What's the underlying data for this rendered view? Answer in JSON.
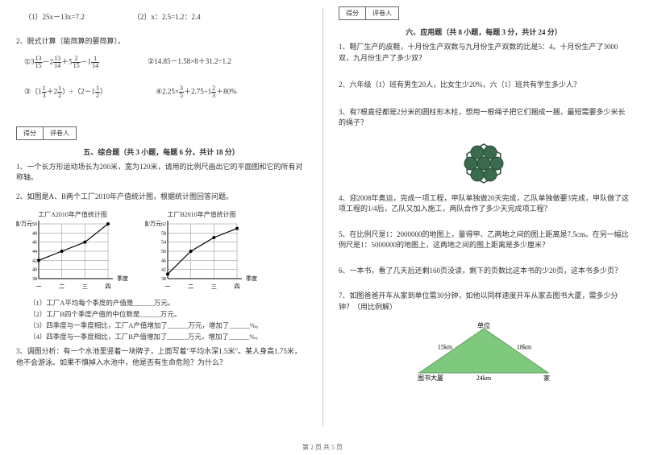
{
  "left": {
    "q1_eq1": "（1）25x－13x=7.2",
    "q1_eq2": "（2）x：2.5=1.2：2.4",
    "q2_title": "2、脱式计算（能简算的要简算）。",
    "q2_eq1_pre": "①3",
    "q2_eq1_f1n": "13",
    "q2_eq1_f1d": "15",
    "q2_eq1_m1": "－2",
    "q2_eq1_f2n": "13",
    "q2_eq1_f2d": "14",
    "q2_eq1_m2": "＋5",
    "q2_eq1_f3n": "2",
    "q2_eq1_f3d": "15",
    "q2_eq1_m3": "－1",
    "q2_eq1_f4n": "1",
    "q2_eq1_f4d": "14",
    "q2_eq2": "②14.85－1.58×8＋31.2÷1.2",
    "q2_eq3_pre": "③（1",
    "q2_eq3_f1n": "1",
    "q2_eq3_f1d": "3",
    "q2_eq3_m1": "＋2",
    "q2_eq3_f2n": "1",
    "q2_eq3_f2d": "2",
    "q2_eq3_m2": "）÷（2－1",
    "q2_eq3_f3n": "1",
    "q2_eq3_f3d": "2",
    "q2_eq3_m3": "）",
    "q2_eq4_pre": "④2.25×",
    "q2_eq4_f1n": "3",
    "q2_eq4_f1d": "5",
    "q2_eq4_m1": "＋2.75÷1",
    "q2_eq4_f2n": "2",
    "q2_eq4_f2d": "3",
    "q2_eq4_m2": "＋80%",
    "score_label1": "得分",
    "score_label2": "评卷人",
    "section5": "五、综合题（共 3 小题，每题 6 分，共计 18 分）",
    "s5_q1": "1、一个长方形运动场长为200米，宽为120米，请用的比例尺画出它的平面图和它的所有对称轴。",
    "s5_q2": "2、如图是A、B两个工厂2010年产值统计图，根据统计图回答问题。",
    "chartA": {
      "title": "工厂A2010年产值统计图",
      "ylabel": "产值/万元",
      "yticks": [
        "50",
        "48",
        "46",
        "44",
        "42",
        "40",
        "38"
      ],
      "xlabel": "季度",
      "xticks": [
        "一",
        "二",
        "三",
        "四"
      ],
      "points": [
        [
          0,
          42
        ],
        [
          1,
          44
        ],
        [
          2,
          46
        ],
        [
          3,
          50
        ]
      ],
      "ymin": 38,
      "ymax": 50,
      "line_color": "#000000",
      "grid_color": "#888888"
    },
    "chartB": {
      "title": "工厂B2010年产值统计图",
      "ylabel": "产值/万元",
      "yticks": [
        "62",
        "58",
        "54",
        "50",
        "46",
        "42",
        "38"
      ],
      "xlabel": "季度",
      "xticks": [
        "一",
        "二",
        "三",
        "四"
      ],
      "points": [
        [
          0,
          40
        ],
        [
          1,
          50
        ],
        [
          2,
          56
        ],
        [
          3,
          60
        ]
      ],
      "ymin": 38,
      "ymax": 62,
      "line_color": "#000000",
      "grid_color": "#888888"
    },
    "s5_q2_1": "（1）工厂A平均每个季度的产值是______万元。",
    "s5_q2_2": "（2）工厂B四个季度产值的中位数是______万元。",
    "s5_q2_3": "（3）四季度与一季度相比，工厂A产值增加了______万元，增加了______%。",
    "s5_q2_4": "（4）四季度与一季度相比，工厂B产值增加了______万元，增加了______%。",
    "s5_q3": "3、调图分析：有一个水池里竖着一块牌子，上面写着\"平均水深1.5米\"。某人身高1.75米，他不会游泳。如果不慎掉入水池中，他是否有生命危险？为什么？"
  },
  "right": {
    "score_label1": "得分",
    "score_label2": "评卷人",
    "section6": "六、应用题（共 8 小题，每题 3 分，共计 24 分）",
    "q1": "1、鞋厂生产的皮鞋，十月份生产双数与九月份生产双数的比是5：4。十月份生产了3000双，九月份生产了多少双？",
    "q2": "2、六年级（1）班有男生20人，比女生少20%，六（1）班共有学生多少人？",
    "q3": "3、有7根直径都是2分米的圆柱形木柱，想用一根绳子把它们捆成一捆，最短需要多少米长的绳子？",
    "circles": {
      "fill": "#3a6b4f",
      "stroke": "#2a4a38",
      "hex_stroke": "#2a4a38",
      "r": 8
    },
    "q4": "4、迎2008年奥运，完成一项工程，甲队单独做20天完成，乙队单独做要3完成，甲队做了这项工程的1/4后，乙队又加入施工，两队合作了多少天完成项工程？",
    "q5": "5、在比例尺是1：2000000的地图上，量得甲、乙两地之间的图上距离是7.5cm。在另一幅比例尺是1：5000000的地图上，这两地之间的图上距离是多少厘米？",
    "q6": "6、一本书，看了几天后还剩160页没读，剩下的页数比这本书的少20页，这本书多少页？",
    "q7": "7、如图爸爸开车从家到单位需30分钟，如他以同样速度开车从家去图书大厦，需多少分钟？（用比例解）",
    "triangle": {
      "fill": "#7fc97f",
      "stroke": "#5a9c5a",
      "vA_label": "单位",
      "vB_label": "图书大厦",
      "vC_label": "家",
      "side_ab": "15km",
      "side_ac": "18km",
      "side_bc": "24km"
    }
  },
  "footer": "第 2 页 共 5 页"
}
